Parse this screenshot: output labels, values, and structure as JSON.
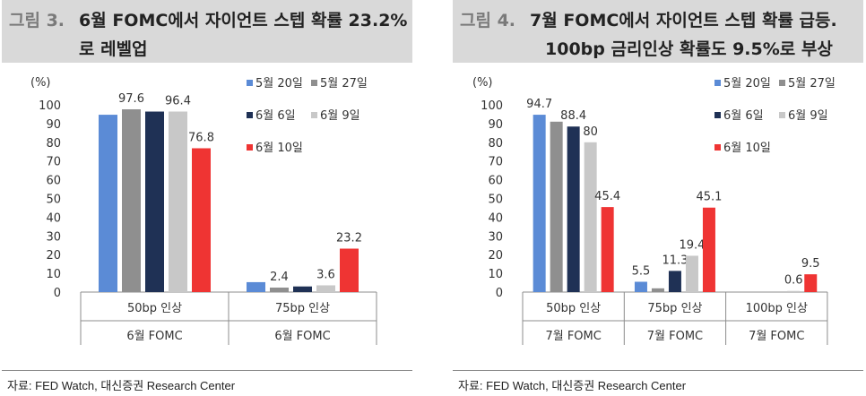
{
  "colors": {
    "5월 20일": "#5b8bd6",
    "5월 27일": "#8f8f8f",
    "6월 6일": "#1f3155",
    "6월 9일": "#c8c8c8",
    "6월 10일": "#ef3433"
  },
  "panels": [
    {
      "fig_label": "그림 3.",
      "title_line1": "6월 FOMC에서 자이언트 스텝 확률 23.2%",
      "title_line2": "로 레벨업",
      "source": "자료: FED Watch, 대신증권 Research Center",
      "chart_data": {
        "type": "bar",
        "title": "6월 FOMC에서 자이언트 스텝 확률 23.2%로 레벨업",
        "ylabel": "(%)",
        "ylim": [
          0,
          100
        ],
        "ytick_step": 10,
        "categories": [
          {
            "line1": "50bp 인상",
            "line2": "6월 FOMC"
          },
          {
            "line1": "75bp 인상",
            "line2": "6월 FOMC"
          }
        ],
        "series": [
          {
            "name": "5월 20일",
            "values": [
              94.7,
              5.3
            ],
            "labels": [
              "",
              ""
            ]
          },
          {
            "name": "5월 27일",
            "values": [
              97.6,
              2.4
            ],
            "labels": [
              "97.6",
              "2.4"
            ]
          },
          {
            "name": "6월 6일",
            "values": [
              96.4,
              3.0
            ],
            "labels": [
              "",
              ""
            ]
          },
          {
            "name": "6월 9일",
            "values": [
              96.4,
              3.6
            ],
            "labels": [
              "96.4",
              "3.6"
            ]
          },
          {
            "name": "6월 10일",
            "values": [
              76.8,
              23.2
            ],
            "labels": [
              "76.8",
              "23.2"
            ]
          }
        ],
        "legend": [
          [
            "5월 20일",
            "5월 27일"
          ],
          [
            "6월 6일",
            "6월 9일"
          ],
          [
            "6월 10일"
          ]
        ],
        "legend_position": "top-right"
      }
    },
    {
      "fig_label": "그림 4.",
      "title_line1": "7월 FOMC에서 자이언트 스텝 확률 급등.",
      "title_line2": "100bp 금리인상 확률도 9.5%로 부상",
      "source": "자료: FED Watch, 대신증권 Research Center",
      "chart_data": {
        "type": "bar",
        "title": "7월 FOMC에서 자이언트 스텝 확률 급등. 100bp 금리인상 확률도 9.5%로 부상",
        "ylabel": "(%)",
        "ylim": [
          0,
          100
        ],
        "ytick_step": 10,
        "categories": [
          {
            "line1": "50bp 인상",
            "line2": "7월 FOMC"
          },
          {
            "line1": "75bp 인상",
            "line2": "7월 FOMC"
          },
          {
            "line1": "100bp 인상",
            "line2": "7월 FOMC"
          }
        ],
        "series": [
          {
            "name": "5월 20일",
            "values": [
              94.7,
              5.5,
              0
            ],
            "labels": [
              "94.7",
              "5.5",
              ""
            ]
          },
          {
            "name": "5월 27일",
            "values": [
              91.0,
              2.0,
              0
            ],
            "labels": [
              "",
              "",
              ""
            ]
          },
          {
            "name": "6월 6일",
            "values": [
              88.4,
              11.3,
              0
            ],
            "labels": [
              "88.4",
              "11.3",
              ""
            ]
          },
          {
            "name": "6월 9일",
            "values": [
              80.0,
              19.4,
              0.6
            ],
            "labels": [
              "80",
              "19.4",
              "0.6"
            ]
          },
          {
            "name": "6월 10일",
            "values": [
              45.4,
              45.1,
              9.5
            ],
            "labels": [
              "45.4",
              "45.1",
              "9.5"
            ]
          }
        ],
        "legend": [
          [
            "5월 20일",
            "5월 27일"
          ],
          [
            "6월 6일",
            "6월 9일"
          ],
          [
            "6월 10일"
          ]
        ],
        "legend_position": "top-right"
      }
    }
  ]
}
